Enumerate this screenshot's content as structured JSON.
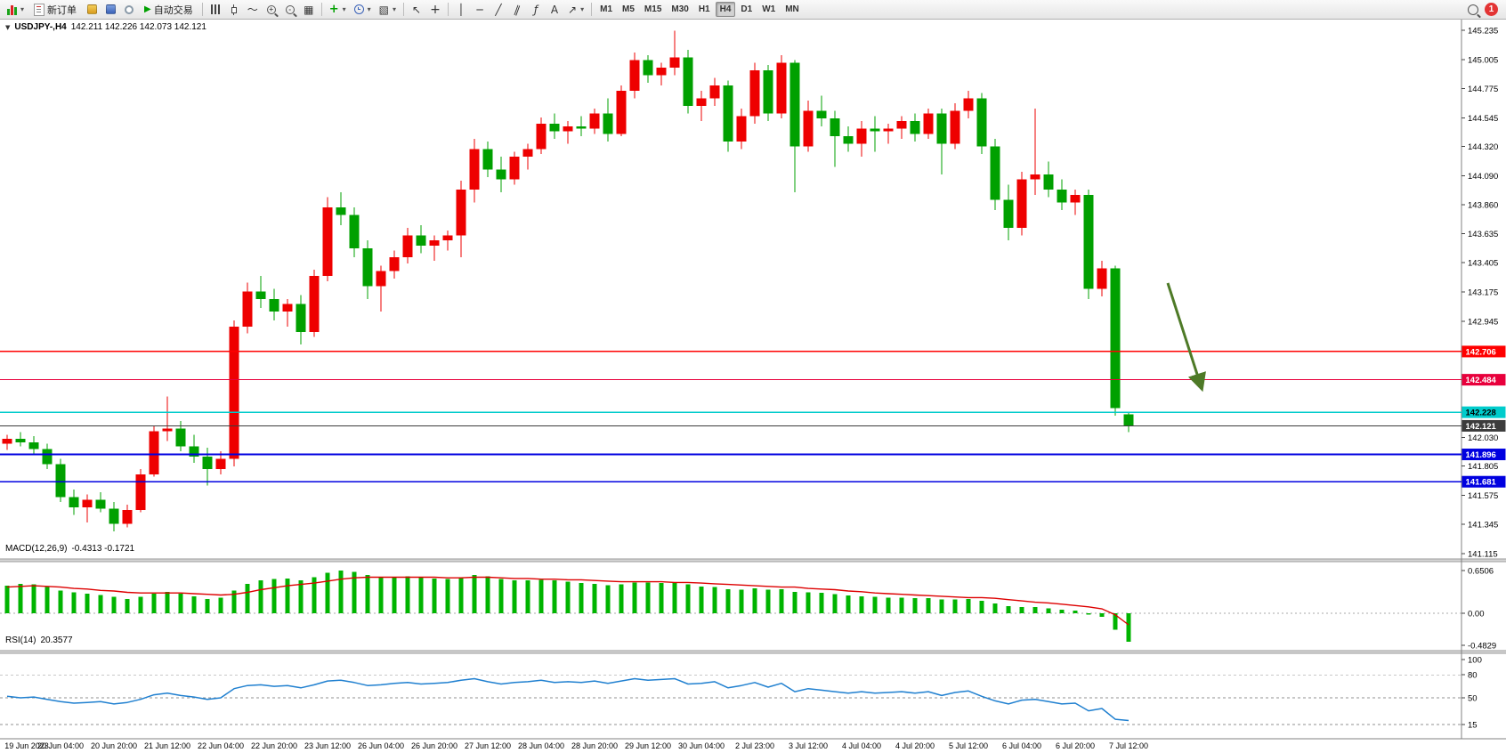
{
  "toolbar": {
    "new_order_label": "新订单",
    "auto_trading_label": "自动交易",
    "timeframes": [
      "M1",
      "M5",
      "M15",
      "M30",
      "H1",
      "H4",
      "D1",
      "W1",
      "MN"
    ],
    "active_timeframe": "H4",
    "notification_count": "1"
  },
  "icons": {
    "dropdown": "▾",
    "expander": "▼",
    "auto_play": "▶",
    "line_chart": "～",
    "tile_windows": "▦",
    "cursor": "↖",
    "crosshair": "+",
    "vertical_line": "│",
    "horizontal_line": "─",
    "trendline": "╱",
    "channel": "∥",
    "fibonacci": "ƒ",
    "text_tool": "A",
    "arrows_tool": "↗",
    "indicators": "+",
    "template": "▧"
  },
  "chart_header": {
    "symbol_period": "USDJPY-,H4",
    "ohlc": "142.211 142.226 142.073 142.121"
  },
  "chart_data": {
    "type": "candlestick",
    "symbol": "USDJPY-",
    "timeframe": "H4",
    "price_max": 145.235,
    "price_min": 141.115,
    "up_color": "#EE0000",
    "down_color": "#00A000",
    "price_axis_labels": [
      "145.235",
      "145.005",
      "144.775",
      "144.545",
      "144.320",
      "144.090",
      "143.860",
      "143.635",
      "143.405",
      "143.175",
      "142.945",
      "142.030",
      "141.805",
      "141.575",
      "141.345",
      "141.115"
    ],
    "hlines": [
      {
        "label": "142.706",
        "price": 142.706,
        "color": "#FF0000",
        "width": 1.6,
        "text_color": "#FFFFFF"
      },
      {
        "label": "142.484",
        "price": 142.484,
        "color": "#E8003C",
        "width": 1.2,
        "text_color": "#FFFFFF"
      },
      {
        "label": "142.228",
        "price": 142.228,
        "color": "#00CCCC",
        "width": 1.6,
        "text_color": "#000000"
      },
      {
        "label": "142.121",
        "price": 142.121,
        "color": "#3C3C3C",
        "width": 1.2,
        "text_color": "#FFFFFF"
      },
      {
        "label": "141.896",
        "price": 141.896,
        "color": "#0000E0",
        "width": 1.8,
        "text_color": "#FFFFFF"
      },
      {
        "label": "141.681",
        "price": 141.681,
        "color": "#0000E0",
        "width": 1.8,
        "text_color": "#FFFFFF"
      }
    ],
    "candles": [
      [
        141.98,
        142.05,
        141.93,
        142.02
      ],
      [
        142.02,
        142.07,
        141.96,
        141.99
      ],
      [
        141.99,
        142.04,
        141.9,
        141.94
      ],
      [
        141.94,
        141.98,
        141.78,
        141.82
      ],
      [
        141.82,
        141.86,
        141.52,
        141.56
      ],
      [
        141.56,
        141.62,
        141.42,
        141.48
      ],
      [
        141.48,
        141.58,
        141.36,
        141.54
      ],
      [
        141.54,
        141.6,
        141.44,
        141.47
      ],
      [
        141.47,
        141.52,
        141.29,
        141.35
      ],
      [
        141.35,
        141.5,
        141.32,
        141.46
      ],
      [
        141.46,
        141.78,
        141.44,
        141.74
      ],
      [
        141.74,
        142.12,
        141.72,
        142.08
      ],
      [
        142.08,
        142.35,
        142.0,
        142.1
      ],
      [
        142.1,
        142.16,
        141.92,
        141.96
      ],
      [
        141.96,
        142.05,
        141.83,
        141.88
      ],
      [
        141.88,
        141.95,
        141.65,
        141.78
      ],
      [
        141.78,
        141.92,
        141.74,
        141.86
      ],
      [
        141.86,
        142.95,
        141.8,
        142.9
      ],
      [
        142.9,
        143.25,
        142.85,
        143.18
      ],
      [
        143.18,
        143.3,
        143.05,
        143.12
      ],
      [
        143.12,
        143.2,
        142.95,
        143.02
      ],
      [
        143.02,
        143.12,
        142.9,
        143.08
      ],
      [
        143.08,
        143.15,
        142.76,
        142.86
      ],
      [
        142.86,
        143.35,
        142.82,
        143.3
      ],
      [
        143.3,
        143.92,
        143.26,
        143.84
      ],
      [
        143.84,
        143.96,
        143.7,
        143.78
      ],
      [
        143.78,
        143.84,
        143.45,
        143.52
      ],
      [
        143.52,
        143.58,
        143.12,
        143.22
      ],
      [
        143.22,
        143.38,
        143.02,
        143.34
      ],
      [
        143.34,
        143.5,
        143.28,
        143.45
      ],
      [
        143.45,
        143.68,
        143.4,
        143.62
      ],
      [
        143.62,
        143.7,
        143.48,
        143.54
      ],
      [
        143.54,
        143.62,
        143.42,
        143.58
      ],
      [
        143.58,
        143.66,
        143.5,
        143.62
      ],
      [
        143.62,
        144.05,
        143.45,
        143.98
      ],
      [
        143.98,
        144.38,
        143.88,
        144.3
      ],
      [
        144.3,
        144.36,
        144.08,
        144.14
      ],
      [
        144.14,
        144.24,
        143.96,
        144.06
      ],
      [
        144.06,
        144.28,
        144.02,
        144.24
      ],
      [
        144.24,
        144.34,
        144.14,
        144.3
      ],
      [
        144.3,
        144.55,
        144.26,
        144.5
      ],
      [
        144.5,
        144.58,
        144.38,
        144.44
      ],
      [
        144.44,
        144.52,
        144.34,
        144.48
      ],
      [
        144.48,
        144.56,
        144.4,
        144.46
      ],
      [
        144.46,
        144.62,
        144.42,
        144.58
      ],
      [
        144.58,
        144.7,
        144.36,
        144.42
      ],
      [
        144.42,
        144.8,
        144.4,
        144.76
      ],
      [
        144.76,
        145.06,
        144.7,
        145.0
      ],
      [
        145.0,
        145.04,
        144.82,
        144.88
      ],
      [
        144.88,
        144.98,
        144.8,
        144.94
      ],
      [
        144.94,
        145.23,
        144.88,
        145.02
      ],
      [
        145.02,
        145.08,
        144.58,
        144.64
      ],
      [
        144.64,
        144.76,
        144.52,
        144.7
      ],
      [
        144.7,
        144.86,
        144.64,
        144.8
      ],
      [
        144.8,
        144.84,
        144.28,
        144.36
      ],
      [
        144.36,
        144.62,
        144.3,
        144.56
      ],
      [
        144.56,
        144.98,
        144.5,
        144.92
      ],
      [
        144.92,
        144.96,
        144.52,
        144.58
      ],
      [
        144.58,
        145.04,
        144.54,
        144.98
      ],
      [
        144.98,
        145.0,
        143.96,
        144.32
      ],
      [
        144.32,
        144.68,
        144.28,
        144.6
      ],
      [
        144.6,
        144.72,
        144.48,
        144.54
      ],
      [
        144.54,
        144.6,
        144.16,
        144.4
      ],
      [
        144.4,
        144.48,
        144.28,
        144.34
      ],
      [
        144.34,
        144.52,
        144.24,
        144.46
      ],
      [
        144.46,
        144.56,
        144.28,
        144.44
      ],
      [
        144.44,
        144.5,
        144.34,
        144.46
      ],
      [
        144.46,
        144.56,
        144.38,
        144.52
      ],
      [
        144.52,
        144.58,
        144.36,
        144.42
      ],
      [
        144.42,
        144.62,
        144.38,
        144.58
      ],
      [
        144.58,
        144.62,
        144.1,
        144.34
      ],
      [
        144.34,
        144.66,
        144.3,
        144.6
      ],
      [
        144.6,
        144.76,
        144.54,
        144.7
      ],
      [
        144.7,
        144.74,
        144.26,
        144.32
      ],
      [
        144.32,
        144.38,
        143.82,
        143.9
      ],
      [
        143.9,
        144.02,
        143.58,
        143.68
      ],
      [
        143.68,
        144.12,
        143.62,
        144.06
      ],
      [
        144.06,
        144.62,
        143.94,
        144.1
      ],
      [
        144.1,
        144.2,
        143.92,
        143.98
      ],
      [
        143.98,
        144.06,
        143.82,
        143.88
      ],
      [
        143.88,
        143.98,
        143.78,
        143.94
      ],
      [
        143.94,
        143.98,
        143.12,
        143.2
      ],
      [
        143.2,
        143.42,
        143.14,
        143.36
      ],
      [
        143.36,
        143.38,
        142.2,
        142.26
      ],
      [
        142.211,
        142.226,
        142.073,
        142.121
      ]
    ],
    "time_labels": [
      "19 Jun 2023",
      "20 Jun 04:00",
      "20 Jun 20:00",
      "21 Jun 12:00",
      "22 Jun 04:00",
      "22 Jun 20:00",
      "23 Jun 12:00",
      "26 Jun 04:00",
      "26 Jun 20:00",
      "27 Jun 12:00",
      "28 Jun 04:00",
      "28 Jun 20:00",
      "29 Jun 12:00",
      "30 Jun 04:00",
      "2 Jul 23:00",
      "3 Jul 12:00",
      "4 Jul 04:00",
      "4 Jul 20:00",
      "5 Jul 12:00",
      "6 Jul 04:00",
      "6 Jul 20:00",
      "7 Jul 12:00"
    ],
    "time_label_step": 4,
    "arrow_annotation": {
      "color": "#4E7A27",
      "from": [
        1312,
        296
      ],
      "to": [
        1350,
        414
      ]
    },
    "macd": {
      "name": "MACD(12,26,9)",
      "values_text": "-0.4313 -0.1721",
      "hist_color": "#00B400",
      "signal_color": "#DD0000",
      "max": 0.6506,
      "min": -0.4829,
      "axis_labels": [
        "0.6506",
        "0.00",
        "-0.4829"
      ],
      "hist": [
        0.42,
        0.45,
        0.44,
        0.4,
        0.35,
        0.32,
        0.3,
        0.28,
        0.25,
        0.22,
        0.25,
        0.3,
        0.33,
        0.3,
        0.26,
        0.22,
        0.24,
        0.35,
        0.45,
        0.5,
        0.52,
        0.53,
        0.5,
        0.55,
        0.62,
        0.65,
        0.63,
        0.58,
        0.55,
        0.55,
        0.56,
        0.55,
        0.53,
        0.52,
        0.55,
        0.58,
        0.56,
        0.52,
        0.5,
        0.5,
        0.51,
        0.5,
        0.48,
        0.46,
        0.45,
        0.43,
        0.44,
        0.47,
        0.47,
        0.46,
        0.47,
        0.44,
        0.41,
        0.4,
        0.37,
        0.36,
        0.38,
        0.36,
        0.37,
        0.33,
        0.32,
        0.31,
        0.29,
        0.27,
        0.26,
        0.25,
        0.24,
        0.24,
        0.23,
        0.23,
        0.21,
        0.21,
        0.22,
        0.19,
        0.15,
        0.11,
        0.1,
        0.1,
        0.08,
        0.06,
        0.04,
        -0.02,
        -0.05,
        -0.25,
        -0.4313
      ],
      "signal": [
        0.4,
        0.41,
        0.42,
        0.41,
        0.4,
        0.38,
        0.37,
        0.35,
        0.34,
        0.32,
        0.31,
        0.31,
        0.31,
        0.31,
        0.3,
        0.29,
        0.28,
        0.29,
        0.32,
        0.36,
        0.39,
        0.42,
        0.44,
        0.46,
        0.49,
        0.52,
        0.54,
        0.55,
        0.55,
        0.55,
        0.55,
        0.55,
        0.55,
        0.54,
        0.54,
        0.55,
        0.55,
        0.54,
        0.53,
        0.53,
        0.52,
        0.52,
        0.51,
        0.51,
        0.5,
        0.49,
        0.48,
        0.48,
        0.48,
        0.48,
        0.47,
        0.47,
        0.46,
        0.45,
        0.44,
        0.43,
        0.42,
        0.41,
        0.4,
        0.4,
        0.38,
        0.37,
        0.36,
        0.34,
        0.33,
        0.31,
        0.3,
        0.29,
        0.28,
        0.27,
        0.26,
        0.25,
        0.24,
        0.24,
        0.23,
        0.21,
        0.19,
        0.17,
        0.16,
        0.14,
        0.12,
        0.1,
        0.07,
        -0.02,
        -0.1721
      ]
    },
    "rsi": {
      "name": "RSI(14)",
      "value_text": "20.3577",
      "color": "#2080D0",
      "max": 100,
      "min": 0,
      "axis_labels": [
        "100",
        "80",
        "50",
        "15"
      ],
      "levels": [
        80,
        50,
        15
      ],
      "values": [
        52,
        50,
        51,
        48,
        45,
        43,
        44,
        45,
        42,
        44,
        48,
        54,
        56,
        53,
        51,
        48,
        50,
        62,
        66,
        67,
        65,
        66,
        63,
        67,
        72,
        73,
        70,
        66,
        67,
        69,
        70,
        68,
        69,
        70,
        73,
        75,
        71,
        68,
        70,
        71,
        73,
        70,
        71,
        70,
        72,
        69,
        72,
        75,
        73,
        74,
        75,
        68,
        69,
        71,
        63,
        66,
        70,
        64,
        69,
        58,
        62,
        60,
        58,
        56,
        58,
        56,
        57,
        58,
        56,
        58,
        53,
        57,
        59,
        52,
        46,
        42,
        47,
        48,
        45,
        42,
        43,
        33,
        36,
        22,
        20.36
      ]
    }
  }
}
